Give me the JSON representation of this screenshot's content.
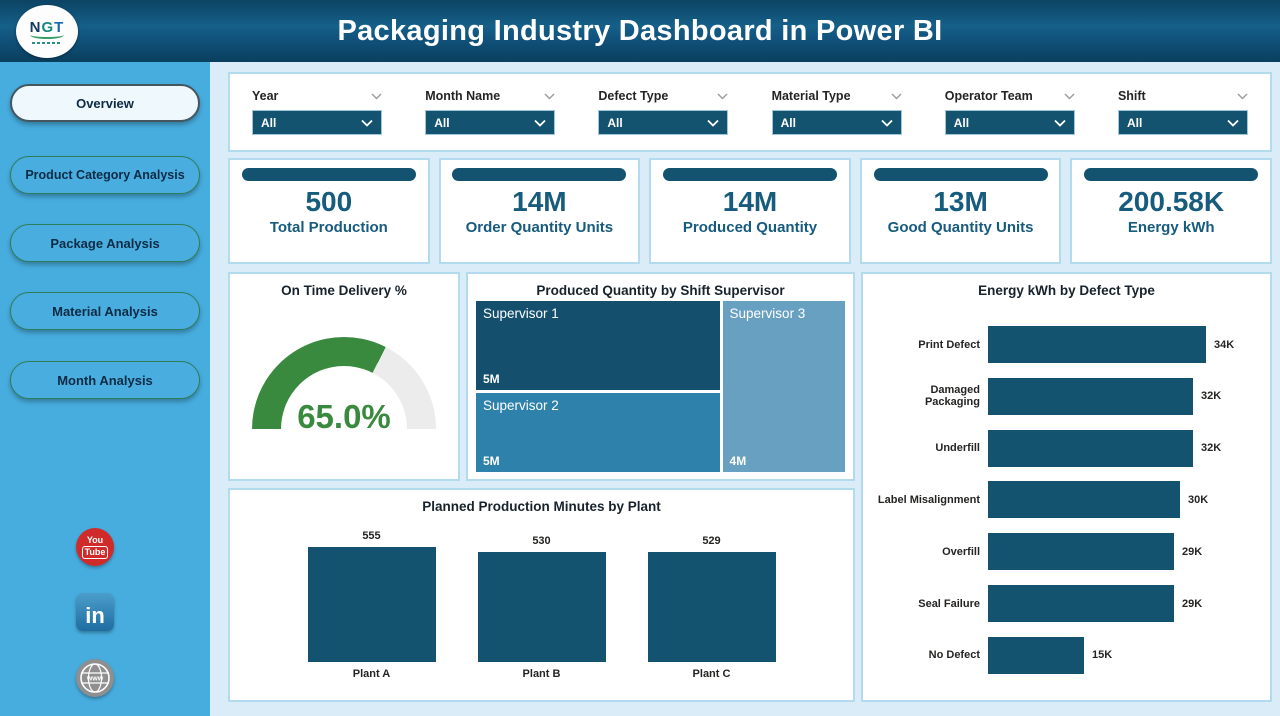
{
  "header": {
    "title": "Packaging Industry Dashboard in Power BI",
    "logo_letters": [
      "N",
      "G",
      "T"
    ]
  },
  "sidebar": {
    "items": [
      {
        "label": "Overview",
        "active": true
      },
      {
        "label": "Product Category Analysis",
        "active": false
      },
      {
        "label": "Package Analysis",
        "active": false
      },
      {
        "label": "Material Analysis",
        "active": false
      },
      {
        "label": "Month Analysis",
        "active": false
      }
    ],
    "social": [
      {
        "name": "youtube",
        "text_top": "You",
        "text_bottom": "Tube"
      },
      {
        "name": "linkedin",
        "text": "in"
      },
      {
        "name": "website",
        "text": "www"
      }
    ]
  },
  "filters": [
    {
      "label": "Year",
      "value": "All"
    },
    {
      "label": "Month Name",
      "value": "All"
    },
    {
      "label": "Defect Type",
      "value": "All"
    },
    {
      "label": "Material Type",
      "value": "All"
    },
    {
      "label": "Operator Team",
      "value": "All"
    },
    {
      "label": "Shift",
      "value": "All"
    }
  ],
  "kpis": [
    {
      "value": "500",
      "label": "Total Production"
    },
    {
      "value": "14M",
      "label": "Order Quantity Units"
    },
    {
      "value": "14M",
      "label": "Produced Quantity"
    },
    {
      "value": "13M",
      "label": "Good Quantity Units"
    },
    {
      "value": "200.58K",
      "label": "Energy kWh"
    }
  ],
  "chart_data": [
    {
      "type": "bar",
      "orientation": "horizontal",
      "title": "Energy kWh by Defect Type",
      "categories": [
        "Print Defect",
        "Damaged Packaging",
        "Underfill",
        "Label Misalignment",
        "Overfill",
        "Seal Failure",
        "No Defect"
      ],
      "values": [
        34,
        32,
        32,
        30,
        29,
        29,
        15
      ],
      "unit": "K",
      "labels": [
        "34K",
        "32K",
        "32K",
        "30K",
        "29K",
        "29K",
        "15K"
      ],
      "bar_color": "#14536f",
      "grid": false,
      "legend": "none"
    },
    {
      "type": "bar",
      "orientation": "vertical",
      "title": "Planned Production Minutes by Plant",
      "categories": [
        "Plant A",
        "Plant B",
        "Plant C"
      ],
      "values": [
        555,
        530,
        529
      ],
      "labels": [
        "555",
        "530",
        "529"
      ],
      "bar_color": "#14536f",
      "grid": false,
      "legend": "none"
    },
    {
      "type": "gauge",
      "title": "On Time Delivery %",
      "value": 65.0,
      "max": 100,
      "label": "65.0%",
      "fill_color": "#398a3e",
      "track_color": "#ececec"
    },
    {
      "type": "treemap",
      "title": "Produced Quantity by Shift Supervisor",
      "items": [
        {
          "name": "Supervisor 1",
          "value": "5M",
          "color": "#14506e"
        },
        {
          "name": "Supervisor 2",
          "value": "5M",
          "color": "#2e81ab"
        },
        {
          "name": "Supervisor 3",
          "value": "4M",
          "color": "#68a0c1"
        }
      ]
    }
  ],
  "colors": {
    "header_teal": "#10517a",
    "accent_dark_teal": "#14536f",
    "sidebar_blue": "#47adde",
    "content_bg": "#d9ecf8",
    "panel_border": "#b3dbf0",
    "kpi_text": "#175b7d",
    "gauge_green": "#398a3e",
    "youtube_red": "#cf2b2b",
    "linkedin_blue": "#1f6da1",
    "globe_gray": "#8f8f8f"
  }
}
